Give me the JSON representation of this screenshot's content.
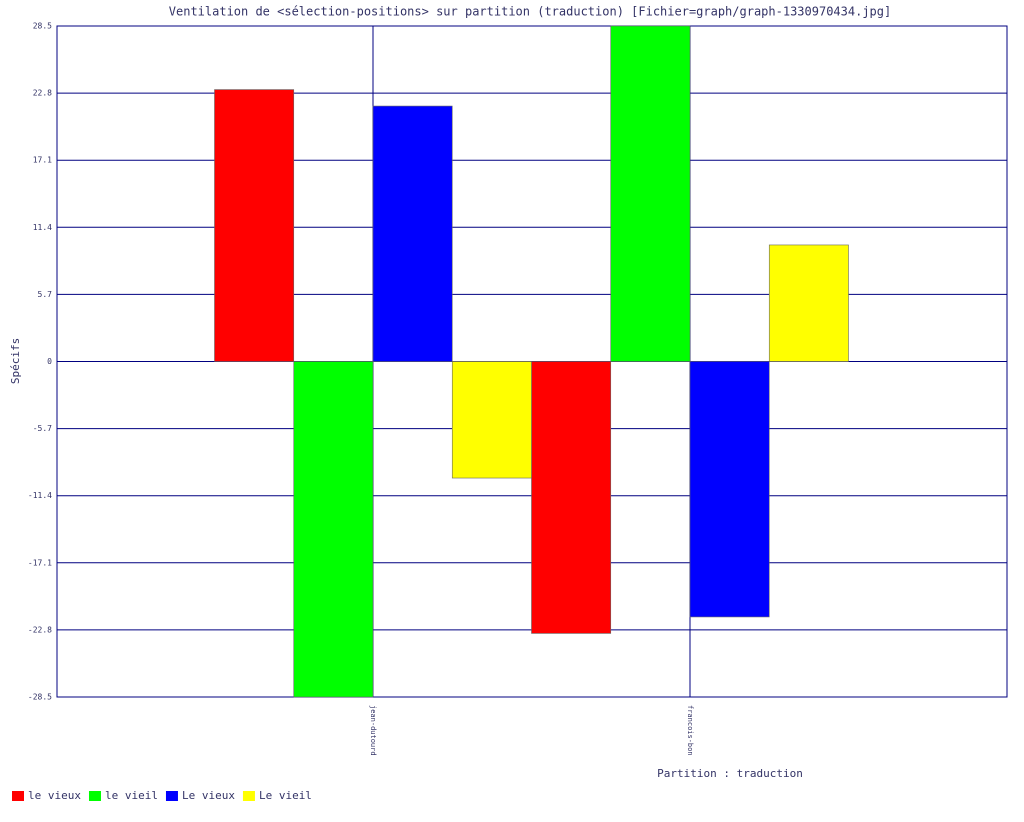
{
  "chart_data": {
    "type": "bar",
    "title": "Ventilation de <sélection-positions> sur partition (traduction) [Fichier=graph/graph-1330970434.jpg]",
    "x_label": "Partition : traduction",
    "y_label": "Spécifs",
    "categories": [
      "jean-dutourd",
      "francois-bon"
    ],
    "series": [
      {
        "name": "le vieux",
        "color": "#ff0000",
        "values": [
          23.1,
          -23.1
        ]
      },
      {
        "name": "le vieil",
        "color": "#00ff00",
        "values": [
          -28.5,
          28.5
        ]
      },
      {
        "name": "Le vieux",
        "color": "#0000ff",
        "values": [
          21.7,
          -21.7
        ]
      },
      {
        "name": "Le vieil",
        "color": "#ffff00",
        "values": [
          -9.9,
          9.9
        ]
      }
    ],
    "ylim": [
      -28.5,
      28.5
    ],
    "yticks": [
      28.5,
      22.8,
      17.1,
      11.4,
      5.7,
      0,
      -5.7,
      -11.4,
      -17.1,
      -22.8,
      -28.5
    ],
    "grid": true
  }
}
